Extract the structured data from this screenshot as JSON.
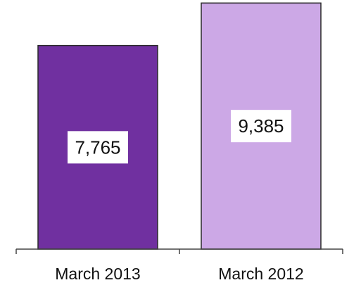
{
  "chart_data": {
    "type": "bar",
    "categories": [
      "March 2013",
      "March 2012"
    ],
    "values": [
      7765,
      9385
    ],
    "value_labels": [
      "7,765",
      "9,385"
    ],
    "colors": [
      "#7030A0",
      "#CCA8E6"
    ],
    "title": "",
    "xlabel": "",
    "ylabel": "",
    "ylim": [
      0,
      9500
    ],
    "grid": false,
    "legend": "none"
  }
}
